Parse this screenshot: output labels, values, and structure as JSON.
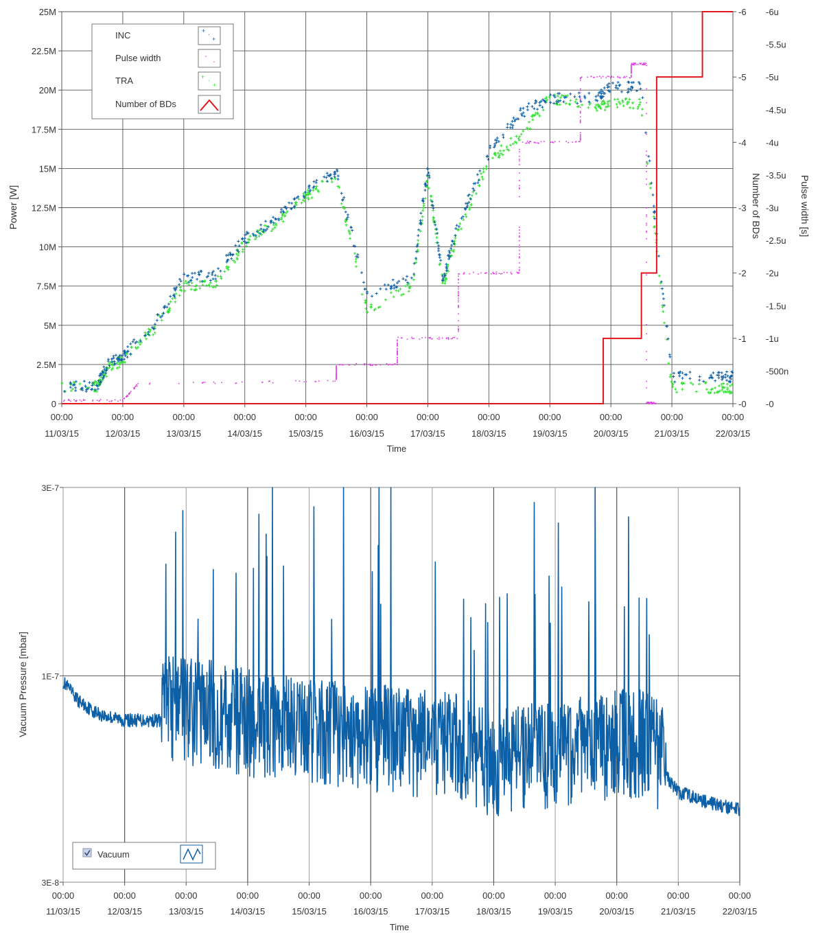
{
  "chart_data": [
    {
      "type": "scatter",
      "xlabel": "Time",
      "ylabel": "Power [W]",
      "y2label": "Number of BDs",
      "y3label": "Pulse width [s]",
      "x_ticks": [
        {
          "time": "00:00",
          "date": "11/03/15"
        },
        {
          "time": "00:00",
          "date": "12/03/15"
        },
        {
          "time": "00:00",
          "date": "13/03/15"
        },
        {
          "time": "00:00",
          "date": "14/03/15"
        },
        {
          "time": "00:00",
          "date": "15/03/15"
        },
        {
          "time": "00:00",
          "date": "16/03/15"
        },
        {
          "time": "00:00",
          "date": "17/03/15"
        },
        {
          "time": "00:00",
          "date": "18/03/15"
        },
        {
          "time": "00:00",
          "date": "19/03/15"
        },
        {
          "time": "00:00",
          "date": "20/03/15"
        },
        {
          "time": "00:00",
          "date": "21/03/15"
        },
        {
          "time": "00:00",
          "date": "22/03/15"
        }
      ],
      "xlim": [
        "11/03/15 00:00",
        "22/03/15 00:00"
      ],
      "ylim": [
        0,
        25000000
      ],
      "y_ticks": [
        "0",
        "2.5M",
        "5M",
        "7.5M",
        "10M",
        "12.5M",
        "15M",
        "17.5M",
        "20M",
        "22.5M",
        "25M"
      ],
      "y2lim": [
        0,
        6
      ],
      "y2_ticks": [
        "0",
        "1",
        "2",
        "3",
        "4",
        "5",
        "6"
      ],
      "y3lim": [
        0,
        6e-06
      ],
      "y3_ticks": [
        "0",
        "500n",
        "1u",
        "1.5u",
        "2u",
        "2.5u",
        "3u",
        "3.5u",
        "4u",
        "4.5u",
        "5u",
        "5.5u",
        "6u"
      ],
      "grid": true,
      "legend_position": "top-left",
      "legend": [
        "INC",
        "Pulse width",
        "TRA",
        "Number of BDs"
      ],
      "colors": {
        "INC": "#0d5fa6",
        "Pulse width": "#e23de6",
        "TRA": "#2fe02f",
        "Number of BDs": "#e0161c"
      },
      "series": [
        {
          "name": "INC",
          "axis": "power",
          "x": [
            "11/03/15 00:00",
            "11/03/15 14:00",
            "11/03/15 18:00",
            "12/03/15 00:00",
            "12/03/15 12:00",
            "13/03/15 00:00",
            "13/03/15 12:00",
            "14/03/15 00:00",
            "14/03/15 12:00",
            "15/03/15 00:00",
            "15/03/15 12:00",
            "16/03/15 00:00",
            "16/03/15 18:00",
            "17/03/15 00:00",
            "17/03/15 06:00",
            "17/03/15 12:00",
            "18/03/15 00:00",
            "18/03/15 12:00",
            "19/03/15 00:00",
            "19/03/15 18:00",
            "20/03/15 00:00",
            "20/03/15 12:00",
            "21/03/15 00:00",
            "21/03/15 18:00",
            "22/03/15 00:00"
          ],
          "y": [
            1000000,
            1200000,
            2500000,
            3000000,
            5000000,
            8000000,
            8200000,
            10500000,
            11800000,
            13500000,
            14800000,
            7000000,
            8000000,
            15000000,
            8000000,
            11500000,
            16000000,
            18500000,
            19500000,
            19500000,
            20200000,
            20200000,
            1700000,
            1700000,
            1700000
          ]
        },
        {
          "name": "TRA",
          "axis": "power",
          "x": [
            "11/03/15 00:00",
            "11/03/15 14:00",
            "11/03/15 18:00",
            "12/03/15 00:00",
            "12/03/15 12:00",
            "13/03/15 00:00",
            "13/03/15 12:00",
            "14/03/15 00:00",
            "14/03/15 12:00",
            "15/03/15 00:00",
            "15/03/15 12:00",
            "16/03/15 00:00",
            "16/03/15 18:00",
            "17/03/15 00:00",
            "17/03/15 06:00",
            "17/03/15 12:00",
            "18/03/15 00:00",
            "18/03/15 12:00",
            "19/03/15 00:00",
            "19/03/15 18:00",
            "20/03/15 00:00",
            "20/03/15 12:00",
            "21/03/15 00:00",
            "21/03/15 18:00",
            "22/03/15 00:00"
          ],
          "y": [
            1000000,
            1100000,
            2200000,
            2800000,
            4700000,
            7500000,
            7500000,
            10200000,
            11500000,
            13200000,
            14500000,
            6000000,
            7600000,
            14500000,
            7500000,
            11000000,
            15500000,
            17000000,
            19500000,
            19000000,
            19100000,
            19100000,
            1000000,
            1000000,
            1000000
          ]
        },
        {
          "name": "Pulse width",
          "axis": "pulse_width",
          "x": [
            "11/03/15 00:00",
            "12/03/15 00:00",
            "12/03/15 06:00",
            "15/03/15 12:00",
            "15/03/15 12:00",
            "16/03/15 12:00",
            "16/03/15 12:00",
            "17/03/15 12:00",
            "17/03/15 12:00",
            "18/03/15 12:00",
            "18/03/15 12:00",
            "19/03/15 12:00",
            "19/03/15 12:00",
            "20/03/15 08:00",
            "20/03/15 08:00",
            "20/03/15 14:00",
            "20/03/15 14:00",
            "20/03/15 18:00"
          ],
          "y": [
            5e-08,
            5e-08,
            3e-07,
            3.5e-07,
            6e-07,
            6e-07,
            1e-06,
            1e-06,
            2e-06,
            2e-06,
            4e-06,
            4e-06,
            5e-06,
            5e-06,
            5.2e-06,
            5.2e-06,
            1e-08,
            1e-08
          ]
        },
        {
          "name": "Number of BDs",
          "axis": "bds",
          "x": [
            "11/03/15 00:00",
            "19/03/15 21:00",
            "19/03/15 21:00",
            "20/03/15 12:00",
            "20/03/15 12:00",
            "20/03/15 18:00",
            "20/03/15 18:00",
            "20/03/15 21:00",
            "20/03/15 21:00",
            "21/03/15 12:00",
            "21/03/15 12:00",
            "22/03/15 00:00"
          ],
          "y": [
            0,
            0,
            1,
            1,
            2,
            2,
            5,
            5,
            5,
            5,
            6,
            6
          ]
        }
      ]
    },
    {
      "type": "line",
      "xlabel": "Time",
      "ylabel": "Vacuum Pressure [mbar]",
      "yscale": "log",
      "ylim": [
        3e-08,
        3e-07
      ],
      "y_ticks": [
        "3E-8",
        "1E-7",
        "3E-7"
      ],
      "x_ticks": [
        {
          "time": "00:00",
          "date": "11/03/15"
        },
        {
          "time": "00:00",
          "date": "12/03/15"
        },
        {
          "time": "00:00",
          "date": "13/03/15"
        },
        {
          "time": "00:00",
          "date": "14/03/15"
        },
        {
          "time": "00:00",
          "date": "15/03/15"
        },
        {
          "time": "00:00",
          "date": "16/03/15"
        },
        {
          "time": "00:00",
          "date": "17/03/15"
        },
        {
          "time": "00:00",
          "date": "18/03/15"
        },
        {
          "time": "00:00",
          "date": "19/03/15"
        },
        {
          "time": "00:00",
          "date": "20/03/15"
        },
        {
          "time": "00:00",
          "date": "21/03/15"
        },
        {
          "time": "00:00",
          "date": "22/03/15"
        }
      ],
      "xlim": [
        "11/03/15 00:00",
        "22/03/15 00:00"
      ],
      "grid": true,
      "legend_position": "bottom-left",
      "legend_checked": true,
      "colors": {
        "Vacuum": "#0d5fa6"
      },
      "series": [
        {
          "name": "Vacuum",
          "x": [
            "11/03/15 00:00",
            "11/03/15 06:00",
            "11/03/15 12:00",
            "11/03/15 16:00",
            "12/03/15 00:00",
            "12/03/15 12:00",
            "13/03/15 00:00",
            "13/03/15 12:00",
            "14/03/15 00:00",
            "14/03/15 12:00",
            "15/03/15 00:00",
            "15/03/15 12:00",
            "16/03/15 00:00",
            "16/03/15 12:00",
            "17/03/15 00:00",
            "17/03/15 12:00",
            "18/03/15 00:00",
            "18/03/15 12:00",
            "19/03/15 00:00",
            "19/03/15 12:00",
            "20/03/15 00:00",
            "20/03/15 12:00",
            "21/03/15 00:00",
            "21/03/15 12:00",
            "22/03/15 00:00"
          ],
          "y": [
            9.5e-08,
            8.5e-08,
            8e-08,
            7.8e-08,
            7.6e-08,
            7.6e-08,
            7.5e-08,
            7.3e-08,
            7e-08,
            6.8e-08,
            6.6e-08,
            6.5e-08,
            6.4e-08,
            6.3e-08,
            6.2e-08,
            6e-08,
            5.5e-08,
            5.7e-08,
            5.8e-08,
            6e-08,
            6.2e-08,
            6.2e-08,
            5e-08,
            4.7e-08,
            4.5e-08
          ]
        }
      ]
    }
  ]
}
